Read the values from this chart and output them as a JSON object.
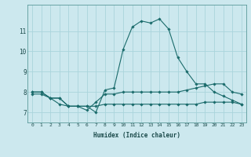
{
  "xlabel": "Humidex (Indice chaleur)",
  "background_color": "#cce8ee",
  "line_color": "#1a6b6b",
  "grid_color": "#aad4dc",
  "xlim": [
    -0.5,
    23.5
  ],
  "ylim": [
    6.5,
    12.3
  ],
  "xticks": [
    0,
    1,
    2,
    3,
    4,
    5,
    6,
    7,
    8,
    9,
    10,
    11,
    12,
    13,
    14,
    15,
    16,
    17,
    18,
    19,
    20,
    21,
    22,
    23
  ],
  "yticks": [
    7,
    8,
    9,
    10,
    11
  ],
  "series": [
    [
      8.0,
      8.0,
      7.7,
      7.7,
      7.3,
      7.3,
      7.3,
      7.0,
      8.1,
      8.2,
      10.1,
      11.2,
      11.5,
      11.4,
      11.6,
      11.1,
      9.7,
      9.0,
      8.4,
      8.4,
      8.0,
      7.8,
      7.6,
      7.4
    ],
    [
      8.0,
      8.0,
      7.7,
      7.7,
      7.3,
      7.3,
      7.1,
      7.5,
      7.9,
      7.9,
      8.0,
      8.0,
      8.0,
      8.0,
      8.0,
      8.0,
      8.0,
      8.1,
      8.2,
      8.3,
      8.4,
      8.4,
      8.0,
      7.9
    ],
    [
      7.9,
      7.9,
      7.7,
      7.4,
      7.3,
      7.3,
      7.3,
      7.3,
      7.4,
      7.4,
      7.4,
      7.4,
      7.4,
      7.4,
      7.4,
      7.4,
      7.4,
      7.4,
      7.4,
      7.5,
      7.5,
      7.5,
      7.5,
      7.4
    ]
  ]
}
